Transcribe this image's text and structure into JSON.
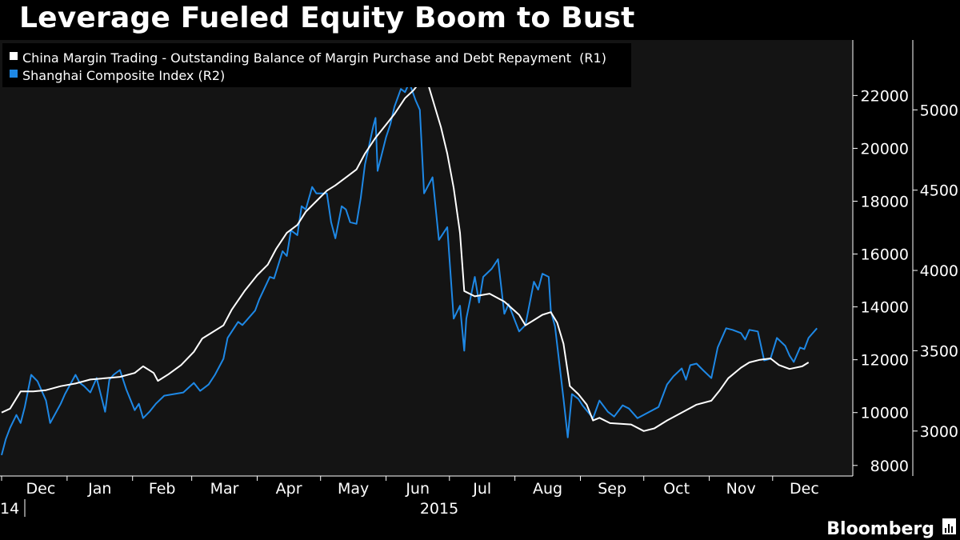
{
  "title": "Leverage Fueled Equity Boom to Bust",
  "brand": "Bloomberg",
  "chart_data": {
    "type": "line",
    "grid": false,
    "legend_position": "top-left",
    "x_axis": {
      "month_labels": [
        "Dec",
        "Jan",
        "Feb",
        "Mar",
        "Apr",
        "May",
        "Jun",
        "Jul",
        "Aug",
        "Sep",
        "Oct",
        "Nov",
        "Dec"
      ],
      "year_labels": [
        "14",
        "2015"
      ],
      "range": [
        "2014-12-01",
        "2015-12-31"
      ]
    },
    "y_axes": [
      {
        "id": "R1",
        "side": "right",
        "ticks": [
          8000,
          10000,
          12000,
          14000,
          16000,
          18000,
          20000,
          22000
        ],
        "tick_labels": [
          "8000",
          "10000",
          "12000",
          "14000",
          "16000",
          "18000",
          "20000",
          "22000"
        ],
        "range": [
          7600,
          24100
        ]
      },
      {
        "id": "R2",
        "side": "right",
        "ticks": [
          3000,
          3500,
          4000,
          4500,
          5000
        ],
        "tick_labels": [
          "3000",
          "3500",
          "4000",
          "4500",
          "5000"
        ],
        "range": [
          2720,
          5435
        ]
      }
    ],
    "series": [
      {
        "name": "China Margin Trading - Outstanding Balance of Margin Purchase and Debt Repayment  (R1)",
        "axis": "R1",
        "color": "#ffffff",
        "points": [
          [
            "2014-12-01",
            10000
          ],
          [
            "2014-12-05",
            10150
          ],
          [
            "2014-12-10",
            10800
          ],
          [
            "2014-12-16",
            10800
          ],
          [
            "2014-12-22",
            10850
          ],
          [
            "2014-12-29",
            11000
          ],
          [
            "2015-01-05",
            11100
          ],
          [
            "2015-01-12",
            11250
          ],
          [
            "2015-01-19",
            11300
          ],
          [
            "2015-01-26",
            11350
          ],
          [
            "2015-02-02",
            11500
          ],
          [
            "2015-02-06",
            11750
          ],
          [
            "2015-02-11",
            11500
          ],
          [
            "2015-02-13",
            11200
          ],
          [
            "2015-02-18",
            11450
          ],
          [
            "2015-02-24",
            11800
          ],
          [
            "2015-03-02",
            12300
          ],
          [
            "2015-03-06",
            12800
          ],
          [
            "2015-03-10",
            13000
          ],
          [
            "2015-03-16",
            13300
          ],
          [
            "2015-03-20",
            13900
          ],
          [
            "2015-03-26",
            14600
          ],
          [
            "2015-04-01",
            15200
          ],
          [
            "2015-04-06",
            15600
          ],
          [
            "2015-04-10",
            16200
          ],
          [
            "2015-04-15",
            16800
          ],
          [
            "2015-04-20",
            17100
          ],
          [
            "2015-04-24",
            17600
          ],
          [
            "2015-04-29",
            18000
          ],
          [
            "2015-05-04",
            18400
          ],
          [
            "2015-05-08",
            18600
          ],
          [
            "2015-05-13",
            18900
          ],
          [
            "2015-05-18",
            19200
          ],
          [
            "2015-05-22",
            19800
          ],
          [
            "2015-05-27",
            20400
          ],
          [
            "2015-06-01",
            20900
          ],
          [
            "2015-06-05",
            21300
          ],
          [
            "2015-06-10",
            21900
          ],
          [
            "2015-06-14",
            22200
          ],
          [
            "2015-06-18",
            22600
          ],
          [
            "2015-06-21",
            22400
          ],
          [
            "2015-06-24",
            21600
          ],
          [
            "2015-06-27",
            20800
          ],
          [
            "2015-06-30",
            19800
          ],
          [
            "2015-07-03",
            18500
          ],
          [
            "2015-07-06",
            16800
          ],
          [
            "2015-07-08",
            14600
          ],
          [
            "2015-07-13",
            14400
          ],
          [
            "2015-07-20",
            14500
          ],
          [
            "2015-07-27",
            14200
          ],
          [
            "2015-08-03",
            13700
          ],
          [
            "2015-08-06",
            13300
          ],
          [
            "2015-08-10",
            13500
          ],
          [
            "2015-08-14",
            13700
          ],
          [
            "2015-08-18",
            13800
          ],
          [
            "2015-08-21",
            13400
          ],
          [
            "2015-08-24",
            12600
          ],
          [
            "2015-08-27",
            11000
          ],
          [
            "2015-08-31",
            10700
          ],
          [
            "2015-09-04",
            10300
          ],
          [
            "2015-09-07",
            9700
          ],
          [
            "2015-09-10",
            9800
          ],
          [
            "2015-09-15",
            9600
          ],
          [
            "2015-09-25",
            9550
          ],
          [
            "2015-10-01",
            9300
          ],
          [
            "2015-10-06",
            9400
          ],
          [
            "2015-10-12",
            9700
          ],
          [
            "2015-10-19",
            10000
          ],
          [
            "2015-10-26",
            10300
          ],
          [
            "2015-11-02",
            10450
          ],
          [
            "2015-11-06",
            10850
          ],
          [
            "2015-11-10",
            11300
          ],
          [
            "2015-11-16",
            11700
          ],
          [
            "2015-11-20",
            11900
          ],
          [
            "2015-11-25",
            12000
          ],
          [
            "2015-11-30",
            12050
          ],
          [
            "2015-12-04",
            11800
          ],
          [
            "2015-12-09",
            11650
          ],
          [
            "2015-12-15",
            11750
          ],
          [
            "2015-12-18",
            11900
          ]
        ]
      },
      {
        "name": "Shanghai Composite Index (R2)",
        "axis": "R2",
        "color": "#1e88e5",
        "points": [
          [
            "2014-12-01",
            2850
          ],
          [
            "2014-12-03",
            2950
          ],
          [
            "2014-12-05",
            3020
          ],
          [
            "2014-12-08",
            3100
          ],
          [
            "2014-12-10",
            3050
          ],
          [
            "2014-12-12",
            3150
          ],
          [
            "2014-12-15",
            3350
          ],
          [
            "2014-12-18",
            3310
          ],
          [
            "2014-12-22",
            3190
          ],
          [
            "2014-12-24",
            3050
          ],
          [
            "2014-12-29",
            3170
          ],
          [
            "2014-12-31",
            3230
          ],
          [
            "2015-01-05",
            3350
          ],
          [
            "2015-01-07",
            3300
          ],
          [
            "2015-01-09",
            3280
          ],
          [
            "2015-01-12",
            3240
          ],
          [
            "2015-01-15",
            3330
          ],
          [
            "2015-01-19",
            3120
          ],
          [
            "2015-01-21",
            3320
          ],
          [
            "2015-01-23",
            3350
          ],
          [
            "2015-01-26",
            3380
          ],
          [
            "2015-01-29",
            3260
          ],
          [
            "2015-02-02",
            3130
          ],
          [
            "2015-02-04",
            3170
          ],
          [
            "2015-02-06",
            3080
          ],
          [
            "2015-02-09",
            3120
          ],
          [
            "2015-02-12",
            3170
          ],
          [
            "2015-02-16",
            3220
          ],
          [
            "2015-02-25",
            3240
          ],
          [
            "2015-03-02",
            3300
          ],
          [
            "2015-03-05",
            3250
          ],
          [
            "2015-03-09",
            3290
          ],
          [
            "2015-03-12",
            3350
          ],
          [
            "2015-03-16",
            3450
          ],
          [
            "2015-03-18",
            3580
          ],
          [
            "2015-03-20",
            3620
          ],
          [
            "2015-03-23",
            3680
          ],
          [
            "2015-03-25",
            3660
          ],
          [
            "2015-03-27",
            3690
          ],
          [
            "2015-03-31",
            3750
          ],
          [
            "2015-04-02",
            3820
          ],
          [
            "2015-04-07",
            3960
          ],
          [
            "2015-04-09",
            3950
          ],
          [
            "2015-04-13",
            4120
          ],
          [
            "2015-04-15",
            4090
          ],
          [
            "2015-04-17",
            4250
          ],
          [
            "2015-04-20",
            4220
          ],
          [
            "2015-04-22",
            4400
          ],
          [
            "2015-04-24",
            4380
          ],
          [
            "2015-04-27",
            4520
          ],
          [
            "2015-04-29",
            4480
          ],
          [
            "2015-05-04",
            4480
          ],
          [
            "2015-05-06",
            4300
          ],
          [
            "2015-05-08",
            4200
          ],
          [
            "2015-05-11",
            4400
          ],
          [
            "2015-05-13",
            4380
          ],
          [
            "2015-05-15",
            4300
          ],
          [
            "2015-05-18",
            4290
          ],
          [
            "2015-05-20",
            4450
          ],
          [
            "2015-05-22",
            4660
          ],
          [
            "2015-05-26",
            4900
          ],
          [
            "2015-05-27",
            4950
          ],
          [
            "2015-05-28",
            4620
          ],
          [
            "2015-06-01",
            4830
          ],
          [
            "2015-06-03",
            4910
          ],
          [
            "2015-06-05",
            5020
          ],
          [
            "2015-06-08",
            5130
          ],
          [
            "2015-06-10",
            5110
          ],
          [
            "2015-06-12",
            5170
          ],
          [
            "2015-06-15",
            5060
          ],
          [
            "2015-06-17",
            5000
          ],
          [
            "2015-06-19",
            4480
          ],
          [
            "2015-06-23",
            4580
          ],
          [
            "2015-06-26",
            4190
          ],
          [
            "2015-06-30",
            4270
          ],
          [
            "2015-07-03",
            3700
          ],
          [
            "2015-07-06",
            3780
          ],
          [
            "2015-07-08",
            3500
          ],
          [
            "2015-07-09",
            3700
          ],
          [
            "2015-07-13",
            3960
          ],
          [
            "2015-07-15",
            3800
          ],
          [
            "2015-07-17",
            3960
          ],
          [
            "2015-07-21",
            4010
          ],
          [
            "2015-07-24",
            4070
          ],
          [
            "2015-07-27",
            3730
          ],
          [
            "2015-07-29",
            3790
          ],
          [
            "2015-08-03",
            3620
          ],
          [
            "2015-08-06",
            3660
          ],
          [
            "2015-08-10",
            3930
          ],
          [
            "2015-08-12",
            3880
          ],
          [
            "2015-08-14",
            3980
          ],
          [
            "2015-08-17",
            3960
          ],
          [
            "2015-08-18",
            3750
          ],
          [
            "2015-08-20",
            3650
          ],
          [
            "2015-08-24",
            3200
          ],
          [
            "2015-08-26",
            2960
          ],
          [
            "2015-08-28",
            3230
          ],
          [
            "2015-08-31",
            3200
          ],
          [
            "2015-09-02",
            3160
          ],
          [
            "2015-09-07",
            3080
          ],
          [
            "2015-09-10",
            3190
          ],
          [
            "2015-09-14",
            3120
          ],
          [
            "2015-09-17",
            3090
          ],
          [
            "2015-09-21",
            3160
          ],
          [
            "2015-09-24",
            3140
          ],
          [
            "2015-09-28",
            3080
          ],
          [
            "2015-10-08",
            3150
          ],
          [
            "2015-10-12",
            3290
          ],
          [
            "2015-10-15",
            3340
          ],
          [
            "2015-10-19",
            3390
          ],
          [
            "2015-10-21",
            3320
          ],
          [
            "2015-10-23",
            3410
          ],
          [
            "2015-10-26",
            3420
          ],
          [
            "2015-10-29",
            3380
          ],
          [
            "2015-11-02",
            3330
          ],
          [
            "2015-11-05",
            3520
          ],
          [
            "2015-11-09",
            3640
          ],
          [
            "2015-11-12",
            3630
          ],
          [
            "2015-11-16",
            3610
          ],
          [
            "2015-11-18",
            3570
          ],
          [
            "2015-11-20",
            3630
          ],
          [
            "2015-11-24",
            3620
          ],
          [
            "2015-11-27",
            3440
          ],
          [
            "2015-11-30",
            3450
          ],
          [
            "2015-12-03",
            3580
          ],
          [
            "2015-12-07",
            3530
          ],
          [
            "2015-12-09",
            3470
          ],
          [
            "2015-12-11",
            3430
          ],
          [
            "2015-12-14",
            3520
          ],
          [
            "2015-12-16",
            3510
          ],
          [
            "2015-12-18",
            3580
          ],
          [
            "2015-12-22",
            3640
          ]
        ]
      }
    ]
  }
}
